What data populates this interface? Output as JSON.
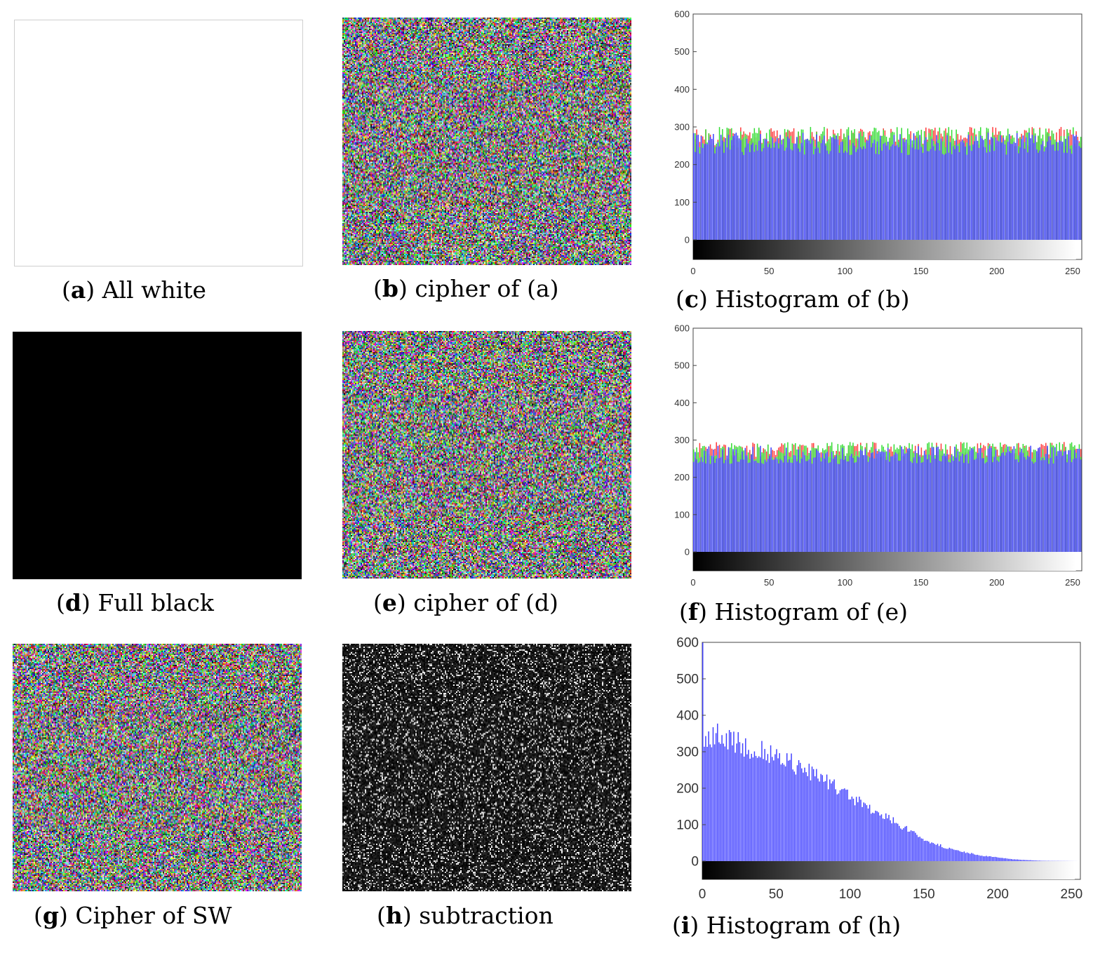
{
  "panels": [
    {
      "id": "a",
      "letter": "a",
      "caption": "All white",
      "kind": "white"
    },
    {
      "id": "b",
      "letter": "b",
      "caption": "cipher of (a)",
      "kind": "color-noise"
    },
    {
      "id": "c",
      "letter": "c",
      "caption": "Histogram of (b)",
      "kind": "histogram"
    },
    {
      "id": "d",
      "letter": "d",
      "caption": "Full black",
      "kind": "black"
    },
    {
      "id": "e",
      "letter": "e",
      "caption": "cipher of (d)",
      "kind": "color-noise"
    },
    {
      "id": "f",
      "letter": "f",
      "caption": "Histogram of (e)",
      "kind": "histogram"
    },
    {
      "id": "g",
      "letter": "g",
      "caption": "Cipher of SW",
      "kind": "color-noise"
    },
    {
      "id": "h",
      "letter": "h",
      "caption": "subtraction",
      "kind": "gray-noise"
    },
    {
      "id": "i",
      "letter": "i",
      "caption": "Histogram of (h)",
      "kind": "histogram"
    }
  ],
  "chart_data": [
    {
      "id": "c",
      "type": "bar",
      "title": "",
      "xlim": [
        0,
        255
      ],
      "ylim": [
        0,
        600
      ],
      "xticks": [
        0,
        50,
        100,
        150,
        200,
        250
      ],
      "yticks": [
        0,
        100,
        200,
        300,
        400,
        500,
        600
      ],
      "colorbar": "grayscale",
      "series": [
        {
          "color": "#ff3b3b",
          "mean": 265,
          "min": 245,
          "max": 300
        },
        {
          "color": "#33dd33",
          "mean": 265,
          "min": 245,
          "max": 300
        },
        {
          "color": "#3f3fff",
          "mean": 255,
          "min": 225,
          "max": 285
        }
      ]
    },
    {
      "id": "f",
      "type": "bar",
      "title": "",
      "xlim": [
        0,
        255
      ],
      "ylim": [
        0,
        600
      ],
      "xticks": [
        0,
        50,
        100,
        150,
        200,
        250
      ],
      "yticks": [
        0,
        100,
        200,
        300,
        400,
        500,
        600
      ],
      "colorbar": "grayscale",
      "series": [
        {
          "color": "#ff3b3b",
          "mean": 265,
          "min": 245,
          "max": 295
        },
        {
          "color": "#33dd33",
          "mean": 265,
          "min": 245,
          "max": 295
        },
        {
          "color": "#3f3fff",
          "mean": 258,
          "min": 235,
          "max": 285
        }
      ]
    },
    {
      "id": "i",
      "type": "bar",
      "title": "",
      "xlim": [
        0,
        255
      ],
      "ylim": [
        0,
        600
      ],
      "xticks": [
        0,
        50,
        100,
        150,
        200,
        250
      ],
      "yticks": [
        0,
        100,
        200,
        300,
        400,
        500,
        600
      ],
      "colorbar": "grayscale",
      "series": [
        {
          "color": "#3f3fff",
          "profile": [
            [
              0,
              600
            ],
            [
              1,
              330
            ],
            [
              10,
              350
            ],
            [
              20,
              335
            ],
            [
              30,
              320
            ],
            [
              50,
              295
            ],
            [
              70,
              255
            ],
            [
              90,
              205
            ],
            [
              110,
              155
            ],
            [
              130,
              110
            ],
            [
              150,
              60
            ],
            [
              170,
              30
            ],
            [
              190,
              15
            ],
            [
              210,
              5
            ],
            [
              230,
              1
            ],
            [
              255,
              0
            ]
          ]
        }
      ]
    }
  ]
}
